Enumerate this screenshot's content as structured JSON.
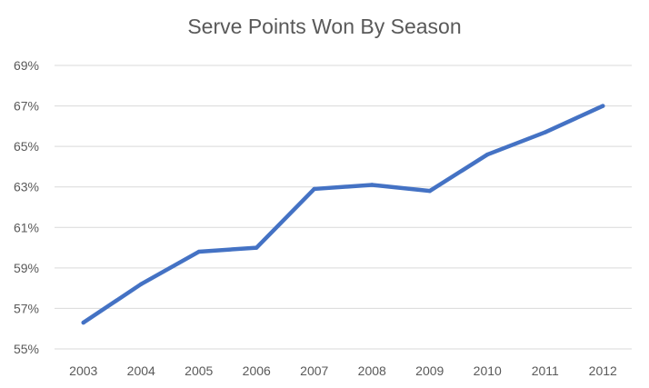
{
  "chart_data": {
    "type": "line",
    "title": "Serve Points Won By Season",
    "xlabel": "",
    "ylabel": "",
    "categories": [
      "2003",
      "2004",
      "2005",
      "2006",
      "2007",
      "2008",
      "2009",
      "2010",
      "2011",
      "2012"
    ],
    "series": [
      {
        "values": [
          56.3,
          58.2,
          59.8,
          60.0,
          62.9,
          63.1,
          62.8,
          64.6,
          65.7,
          67.0
        ]
      }
    ],
    "ylim": [
      55,
      69
    ],
    "yticks": [
      55,
      57,
      59,
      61,
      63,
      65,
      67,
      69
    ],
    "ytick_labels": [
      "55%",
      "57%",
      "59%",
      "61%",
      "63%",
      "65%",
      "67%",
      "69%"
    ],
    "grid": true,
    "line_color": "#4472c4",
    "grid_color": "#d9d9d9"
  }
}
